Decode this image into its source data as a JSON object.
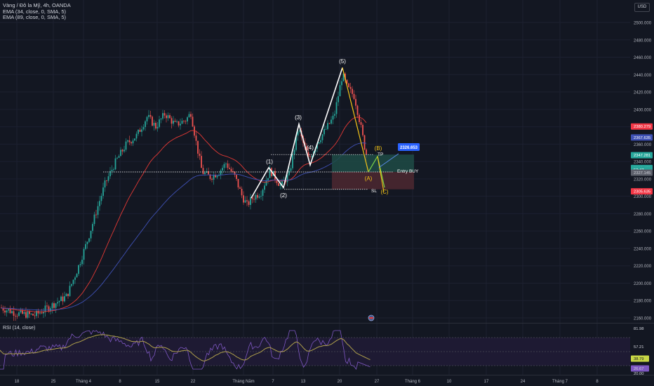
{
  "legend": {
    "symbol": "Vàng / Đô la Mỹ, 4h, OANDA",
    "ema34": "EMA (34, close, 0, SMA, 5)",
    "ema89": "EMA (89, close, 0, SMA, 5)"
  },
  "currency": "USD",
  "rsi_title": "RSI (14, close)",
  "colors": {
    "background": "#131722",
    "candle_up": "#26a69a",
    "candle_down": "#ef5350",
    "ema34": "#e53935",
    "ema89": "#3f51b5",
    "rsi": "#b0a14b",
    "wave": "#ffffff",
    "correction": "#f5c518",
    "tp_zone": "#1e4b45",
    "sl_zone": "#4a2730",
    "tp_label_bg": "#2962ff"
  },
  "annotations": {
    "wave_labels": [
      "(1)",
      "(2)",
      "(3)",
      "(4)",
      "(5)"
    ],
    "correction_labels": [
      "(A)",
      "(B)",
      "(C)"
    ],
    "tp": "TP",
    "entry": "Entry BUY",
    "sl": "SL",
    "target_price": "2326.653"
  },
  "chart_data": [
    {
      "type": "candlestick",
      "title": "",
      "price_ticks": [
        "2500.000",
        "2480.000",
        "2460.000",
        "2440.000",
        "2420.000",
        "2400.000",
        "2380.000",
        "2360.000",
        "2340.000",
        "2320.000",
        "2300.000",
        "2280.000",
        "2260.000",
        "2240.000",
        "2220.000",
        "2200.000",
        "2180.000",
        "2160.000"
      ],
      "ylim": [
        2150,
        2510
      ],
      "x_ticks": [
        "18",
        "25",
        "Tháng 4",
        "8",
        "15",
        "22",
        "Tháng Năm",
        "7",
        "13",
        "20",
        "27",
        "Tháng 6",
        "10",
        "17",
        "24",
        "Tháng 7",
        "8"
      ],
      "price_labels": [
        {
          "value": "2380.279",
          "color": "#f23645"
        },
        {
          "value": "2367.635",
          "color": "#3f51b5"
        },
        {
          "value": "2347.281",
          "color": "#26a69a"
        },
        {
          "value": "2332.475",
          "color": "#26a69a"
        },
        {
          "value": "52:47",
          "color": "#26a69a"
        },
        {
          "value": "2327.145",
          "color": "#5d606b"
        },
        {
          "value": "2305.635",
          "color": "#f23645"
        }
      ],
      "wave_points": [
        {
          "label": "start",
          "price": 2298
        },
        {
          "label": "(1)",
          "price": 2333
        },
        {
          "label": "(2)",
          "price": 2310
        },
        {
          "label": "(3)",
          "price": 2383
        },
        {
          "label": "(4)",
          "price": 2336
        },
        {
          "label": "(5)",
          "price": 2448
        },
        {
          "label": "(A)",
          "price": 2328
        }
      ],
      "levels": {
        "tp": 2346,
        "entry": 2328,
        "sl": 2308,
        "resistance": 2328
      }
    },
    {
      "type": "line",
      "title": "RSI (14, close)",
      "ticks": [
        "81.98",
        "57.21",
        "38.79",
        "26.67",
        "20.00"
      ],
      "levels": [
        70,
        50,
        30
      ]
    }
  ]
}
